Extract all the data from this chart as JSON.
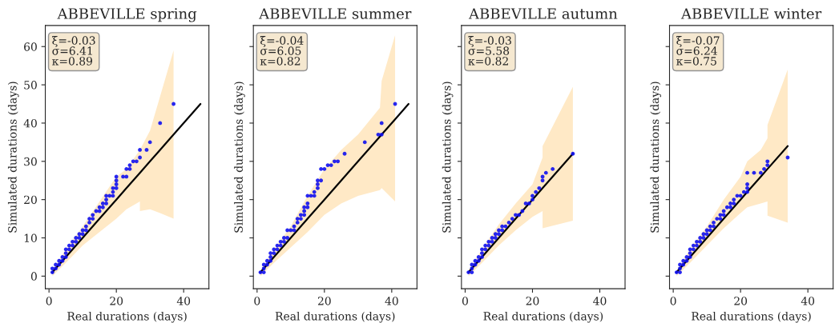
{
  "chart_data": [
    {
      "type": "scatter",
      "title": "ABBEVILLE spring",
      "xlabel": "Real durations (days)",
      "ylabel": "Simulated durations (days)",
      "xlim": [
        -1.1,
        47.5
      ],
      "ylim": [
        -3.3,
        65.5
      ],
      "xticks": [
        0,
        20,
        40
      ],
      "yticks": [
        0,
        10,
        20,
        30,
        40,
        50,
        60
      ],
      "annotations": [
        "ξ=-0.03\nσ=6.41\nκ=0.89"
      ],
      "series": [
        {
          "type": "line",
          "color": "#000000",
          "line_style": "solid",
          "x": [
            1,
            5,
            10,
            15,
            20,
            23,
            27,
            27,
            30,
            33,
            37,
            45
          ],
          "values": [
            1,
            5,
            10,
            15,
            20,
            23,
            27,
            27,
            30,
            33,
            37,
            45
          ],
          "lower": [
            0,
            3.5,
            8,
            11.5,
            15,
            17.5,
            19.5,
            17,
            17.5,
            16.5,
            15,
            null
          ],
          "upper": [
            1.5,
            7,
            13,
            19.5,
            26,
            28,
            33,
            33,
            38,
            47,
            59,
            null
          ]
        },
        {
          "color": "#1010f0",
          "marker": "circle",
          "x": [
            1,
            1,
            2,
            2,
            3,
            3,
            4,
            4,
            5,
            5,
            5,
            6,
            6,
            7,
            7,
            8,
            8,
            9,
            9,
            10,
            10,
            11,
            11,
            12,
            12,
            13,
            13,
            14,
            15,
            15,
            16,
            16,
            17,
            17,
            17,
            18,
            19,
            19,
            19,
            20,
            20,
            20,
            20,
            22,
            23,
            23,
            24,
            24,
            25,
            26,
            27,
            27,
            29,
            30,
            33,
            37
          ],
          "values": [
            1,
            2,
            2,
            3,
            3,
            4,
            4,
            5,
            5,
            6,
            7,
            7,
            8,
            8,
            9,
            9,
            10,
            10,
            11,
            11,
            12,
            12,
            13,
            14,
            15,
            15,
            16,
            17,
            17,
            18,
            18,
            19,
            19,
            20,
            21,
            21,
            21,
            22,
            23,
            23,
            24,
            25,
            26,
            26,
            26,
            28,
            28,
            29,
            30,
            30,
            31,
            33,
            33,
            35,
            40,
            45
          ]
        }
      ]
    },
    {
      "type": "scatter",
      "title": "ABBEVILLE summer",
      "xlabel": "Real durations (days)",
      "ylabel": "Simulated durations (days)",
      "xlim": [
        -1.1,
        47.5
      ],
      "ylim": [
        -3.3,
        65.5
      ],
      "xticks": [
        0,
        20,
        40
      ],
      "yticks": [
        0,
        10,
        20,
        30,
        40,
        50,
        60
      ],
      "tick_labels": "x",
      "annotations": [
        "ξ=-0.04\nσ=6.05\nκ=0.82"
      ],
      "series": [
        {
          "type": "line",
          "color": "#000000",
          "line_style": "solid",
          "x": [
            1,
            5,
            10,
            15,
            20,
            25,
            30,
            36.5,
            37,
            41,
            45
          ],
          "values": [
            1,
            5,
            10,
            15,
            20,
            25,
            30,
            36.5,
            37,
            41,
            45
          ],
          "lower": [
            0,
            3.5,
            7.5,
            11.5,
            16,
            19,
            21,
            22.5,
            23,
            19.5,
            null
          ],
          "upper": [
            1.5,
            7,
            13,
            21,
            28,
            33,
            37,
            44,
            51,
            63,
            null
          ]
        },
        {
          "color": "#1010f0",
          "marker": "circle",
          "x": [
            1,
            2,
            2,
            2,
            3,
            3,
            4,
            4,
            4,
            5,
            5,
            6,
            6,
            7,
            7,
            8,
            8,
            9,
            9,
            10,
            11,
            11,
            12,
            12,
            13,
            13,
            14,
            14,
            14,
            15,
            15,
            15,
            16,
            17,
            17,
            18,
            18,
            18,
            19,
            19,
            20,
            21,
            22,
            23,
            24,
            26,
            32,
            36,
            37,
            37,
            41
          ],
          "values": [
            1,
            1,
            2,
            3,
            3,
            4,
            4,
            5,
            6,
            6,
            7,
            7,
            8,
            8,
            9,
            9,
            10,
            10,
            12,
            12,
            12,
            13,
            14,
            15,
            15,
            16,
            16,
            17,
            18,
            18,
            19,
            21,
            21,
            21,
            22,
            23,
            24,
            25,
            25,
            28,
            28,
            29,
            29,
            30,
            30,
            32,
            35,
            37,
            37,
            40,
            45
          ]
        }
      ]
    },
    {
      "type": "scatter",
      "title": "ABBEVILLE autumn",
      "xlabel": "Real durations (days)",
      "ylabel": "Simulated durations (days)",
      "xlim": [
        -1.1,
        47.5
      ],
      "ylim": [
        -3.3,
        65.5
      ],
      "xticks": [
        0,
        20,
        40
      ],
      "yticks": [
        0,
        10,
        20,
        30,
        40,
        50,
        60
      ],
      "tick_labels": "x",
      "annotations": [
        "ξ=-0.03\nσ=5.58\nκ=0.82"
      ],
      "series": [
        {
          "type": "line",
          "color": "#000000",
          "line_style": "solid",
          "x": [
            1,
            5,
            10,
            15,
            20,
            23,
            23,
            32
          ],
          "values": [
            1,
            5,
            10,
            15,
            20,
            23,
            23,
            32
          ],
          "lower": [
            0,
            3.5,
            8,
            12,
            15.5,
            17,
            12.5,
            14.5
          ],
          "upper": [
            1.5,
            7,
            13.5,
            19,
            24,
            31,
            34,
            49.5
          ]
        },
        {
          "color": "#1010f0",
          "marker": "circle",
          "x": [
            1,
            2,
            2,
            2,
            3,
            3,
            4,
            4,
            5,
            5,
            5,
            6,
            6,
            7,
            7,
            8,
            8,
            9,
            9,
            10,
            10,
            11,
            11,
            12,
            13,
            14,
            15,
            16,
            17,
            18,
            19,
            20,
            20,
            21,
            22,
            23,
            23,
            24,
            26,
            32
          ],
          "values": [
            1,
            1,
            2,
            3,
            3,
            4,
            4,
            5,
            5,
            6,
            7,
            7,
            8,
            8,
            9,
            9,
            10,
            10,
            11,
            11,
            12,
            12,
            13,
            13,
            14,
            15,
            16,
            16,
            17,
            19,
            19,
            20,
            21,
            22,
            23,
            25,
            26,
            27,
            28,
            32
          ]
        }
      ]
    },
    {
      "type": "scatter",
      "title": "ABBEVILLE winter",
      "xlabel": "Real durations (days)",
      "ylabel": "Simulated durations (days)",
      "xlim": [
        -1.1,
        47.5
      ],
      "ylim": [
        -3.3,
        65.5
      ],
      "xticks": [
        0,
        20,
        40
      ],
      "yticks": [
        0,
        10,
        20,
        30,
        40,
        50,
        60
      ],
      "tick_labels": "x",
      "annotations": [
        "ξ=-0.07\nσ=6.24\nκ=0.75"
      ],
      "series": [
        {
          "type": "line",
          "color": "#000000",
          "line_style": "solid",
          "x": [
            1,
            5,
            10,
            15,
            20,
            22,
            26,
            28,
            28,
            34
          ],
          "values": [
            1,
            5,
            10,
            15,
            20,
            22,
            26,
            28,
            28,
            34
          ],
          "lower": [
            0,
            3.5,
            8,
            12.5,
            16.5,
            18,
            19,
            19.5,
            15.8,
            14
          ],
          "upper": [
            1.5,
            7,
            13,
            20,
            26,
            30,
            33,
            36,
            39.5,
            54
          ]
        },
        {
          "color": "#1010f0",
          "marker": "circle",
          "x": [
            1,
            2,
            2,
            2,
            3,
            3,
            4,
            4,
            5,
            5,
            5,
            6,
            6,
            7,
            7,
            8,
            8,
            9,
            9,
            10,
            10,
            11,
            11,
            12,
            12,
            13,
            14,
            14,
            15,
            15,
            16,
            17,
            17,
            18,
            18,
            19,
            20,
            21,
            22,
            22,
            22,
            22,
            24,
            26,
            27,
            28,
            28,
            34
          ],
          "values": [
            1,
            1,
            2,
            3,
            3,
            4,
            4,
            5,
            5,
            6,
            7,
            7,
            8,
            8,
            9,
            9,
            10,
            10,
            11,
            11,
            12,
            12,
            13,
            13,
            14,
            15,
            15,
            16,
            16,
            17,
            18,
            18,
            19,
            19,
            20,
            21,
            21,
            22,
            22,
            23,
            24,
            27,
            27,
            27,
            28,
            29,
            30,
            31
          ]
        }
      ]
    }
  ]
}
